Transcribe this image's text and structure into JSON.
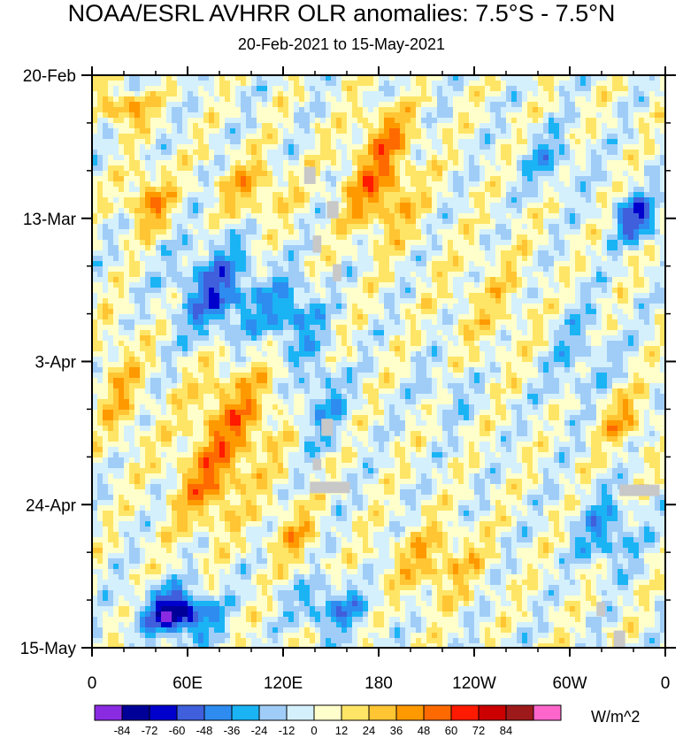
{
  "chart_data": {
    "type": "heatmap",
    "title": "NOAA/ESRL AVHRR OLR anomalies: 7.5°S - 7.5°N",
    "subtitle": "20-Feb-2021 to 15-May-2021",
    "x_ticks": [
      "0",
      "60E",
      "120E",
      "180",
      "120W",
      "60W",
      "0"
    ],
    "y_ticks": [
      "20-Feb",
      "13-Mar",
      "3-Apr",
      "24-Apr",
      "15-May"
    ],
    "xlim_deg_east": [
      0,
      360
    ],
    "date_range_days": 84,
    "colorbar": {
      "labels": [
        "-84",
        "-72",
        "-60",
        "-48",
        "-36",
        "-24",
        "-12",
        "0",
        "12",
        "24",
        "36",
        "48",
        "60",
        "72",
        "84"
      ],
      "colors": [
        "#8a2be2",
        "#000099",
        "#0000cd",
        "#3f5fdc",
        "#2e8cf0",
        "#1ab4f5",
        "#a0cdf7",
        "#d4f0fc",
        "#ffffcc",
        "#ffe566",
        "#ffc533",
        "#ff9900",
        "#ff6a00",
        "#ff1a00",
        "#cc0000",
        "#9e1a1a",
        "#ff66cc"
      ],
      "units": "W/m^2"
    },
    "missing_color": "#c8c8c8"
  }
}
